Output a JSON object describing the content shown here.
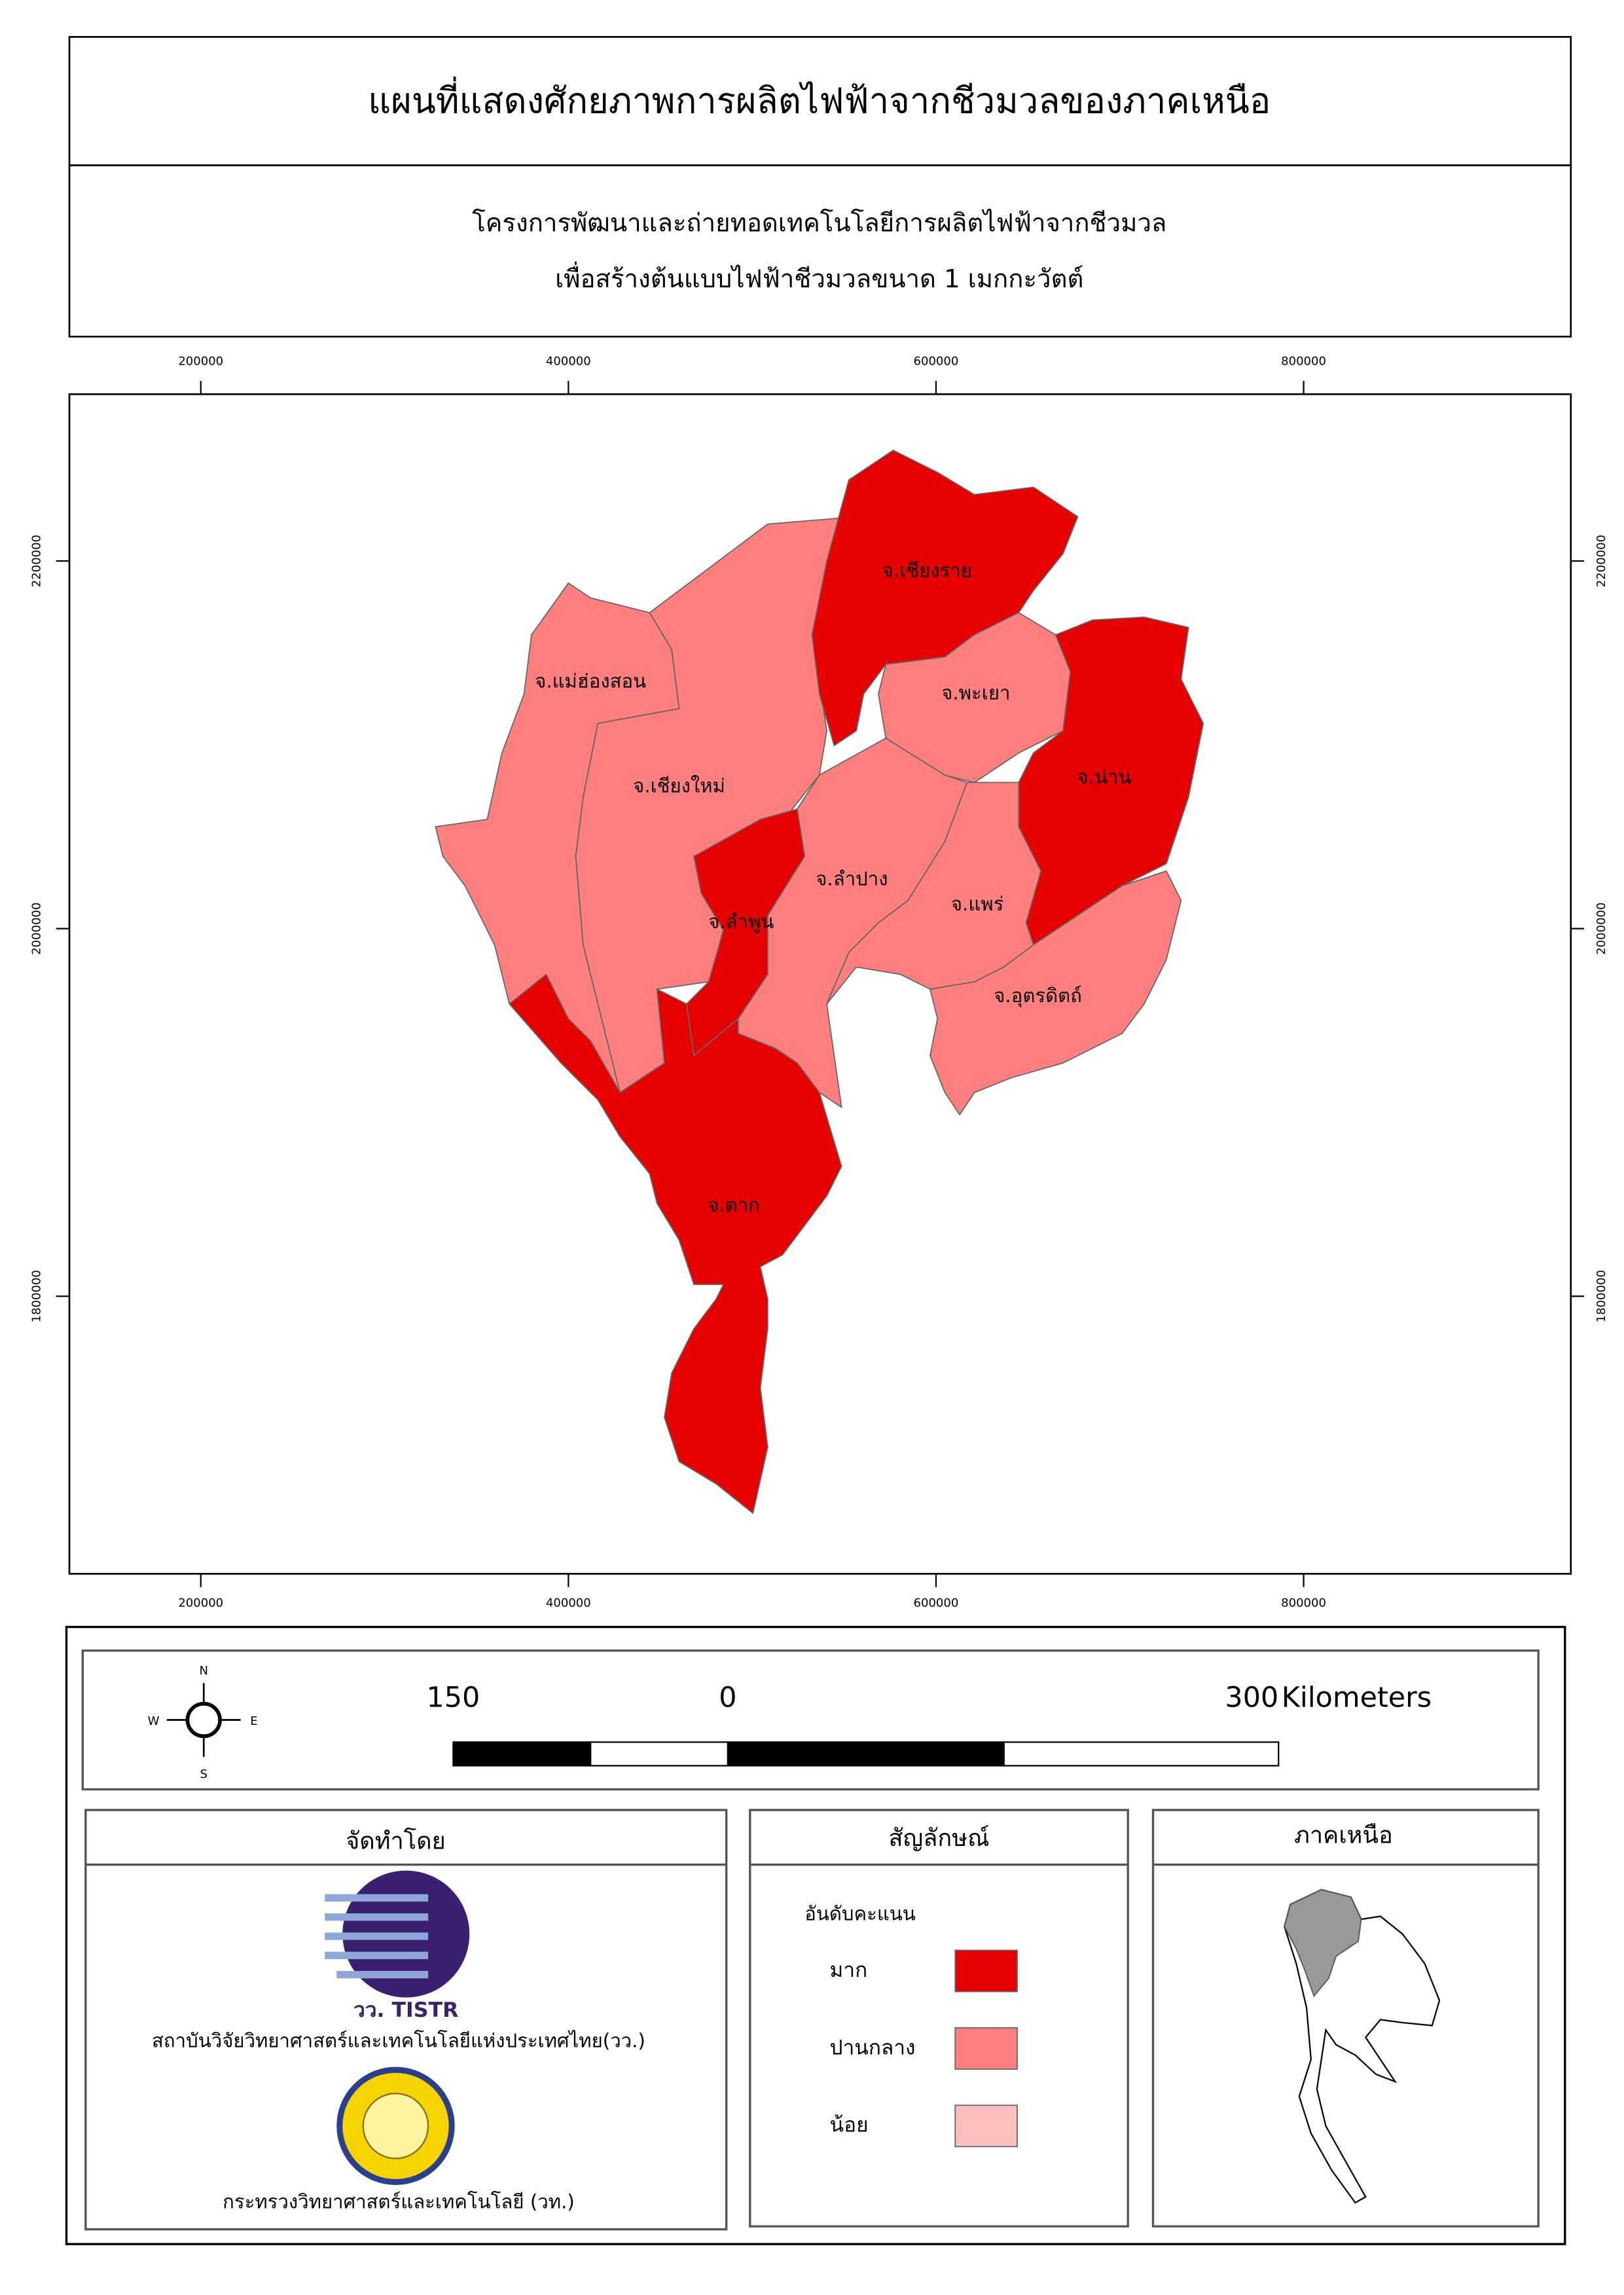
{
  "header": {
    "title": "แผนที่แสดงศักยภาพการผลิตไฟฟ้าจากชีวมวลของภาคเหนือ",
    "subtitle": [
      "โครงการพัฒนาและถ่ายทอดเทคโนโลยีการผลิตไฟฟ้าจากชีวมวล",
      "เพื่อสร้างต้นแบบไฟฟ้าชีวมวลขนาด 1 เมกกะวัตต์"
    ]
  },
  "map": {
    "x_ticks": [
      200000,
      400000,
      600000,
      800000
    ],
    "y_ticks": [
      2200000,
      2000000,
      1800000
    ],
    "provinces": [
      {
        "label": "จ.เชียงราย"
      },
      {
        "label": "จ.แม่ฮ่องสอน"
      },
      {
        "label": "จ.พะเยา"
      },
      {
        "label": "จ.น่าน"
      },
      {
        "label": "จ.เชียงใหม่"
      },
      {
        "label": "จ.ลำปาง"
      },
      {
        "label": "จ.แพร่"
      },
      {
        "label": "จ.ลำพูน"
      },
      {
        "label": "จ.อุตรดิตถ์"
      },
      {
        "label": "จ.ตาก"
      }
    ]
  },
  "compass": {
    "north": "N",
    "west": "W",
    "east": "E",
    "south": "S"
  },
  "scale_bar": {
    "labels": [
      "150",
      "0",
      "300"
    ],
    "unit": "Kilometers"
  },
  "credits": {
    "title": "จัดทำโดย",
    "logo_text": "วว. TISTR",
    "org1": "สถาบันวิจัยวิทยาศาสตร์และเทคโนโลยีแห่งประเทศไทย(วว.)",
    "org2": "กระทรวงวิทยาศาสตร์และเทคโนโลยี (วท.)"
  },
  "legend": {
    "title": "สัญลักษณ์",
    "heading": "อันดับคะแนน",
    "items": [
      {
        "label": "มาก",
        "color": "#e60000"
      },
      {
        "label": "ปานกลาง",
        "color": "#ff7f7f"
      },
      {
        "label": "น้อย",
        "color": "#ffbebe"
      }
    ]
  },
  "inset": {
    "title": "ภาคเหนือ"
  }
}
